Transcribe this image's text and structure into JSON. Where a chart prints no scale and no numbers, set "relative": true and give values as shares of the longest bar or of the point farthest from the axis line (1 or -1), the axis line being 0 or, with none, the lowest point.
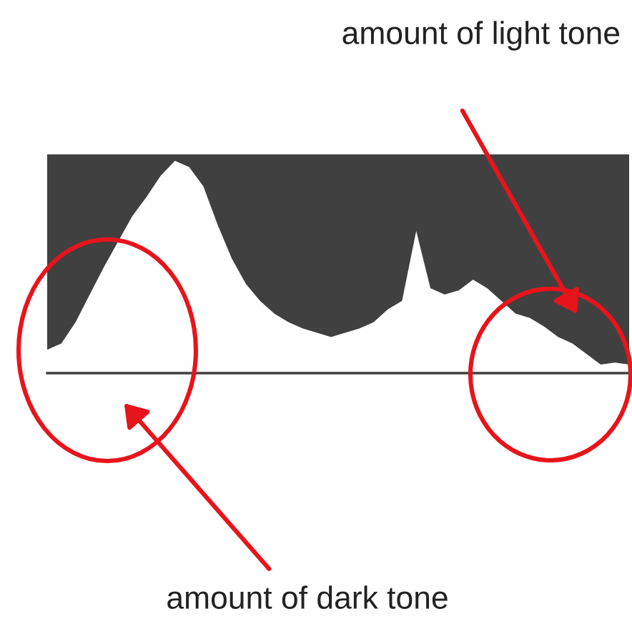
{
  "chart_data": {
    "type": "area",
    "relative": true,
    "categories": [
      null,
      null,
      null,
      null,
      null,
      null,
      null,
      null,
      null,
      null,
      null,
      null,
      null,
      null,
      null,
      null,
      null,
      null,
      null,
      null,
      null,
      null,
      null,
      null,
      null,
      null,
      null,
      null,
      null,
      null,
      null,
      null,
      null,
      null,
      null,
      null,
      null,
      null,
      null,
      null,
      null,
      null
    ],
    "series": [
      {
        "color": "#ffffff",
        "values": [
          0.11,
          0.14,
          0.24,
          0.37,
          0.5,
          0.62,
          0.74,
          0.83,
          0.93,
          1.0,
          0.97,
          0.88,
          0.7,
          0.54,
          0.42,
          0.34,
          0.28,
          0.24,
          0.21,
          0.19,
          0.17,
          0.19,
          0.21,
          0.24,
          0.3,
          0.34,
          0.67,
          0.4,
          0.37,
          0.39,
          0.44,
          0.4,
          0.34,
          0.28,
          0.26,
          0.22,
          0.17,
          0.14,
          0.09,
          0.04,
          0.05,
          0.04
        ]
      }
    ],
    "annotations": [
      "amount of light tone",
      "amount of dark tone"
    ]
  }
}
